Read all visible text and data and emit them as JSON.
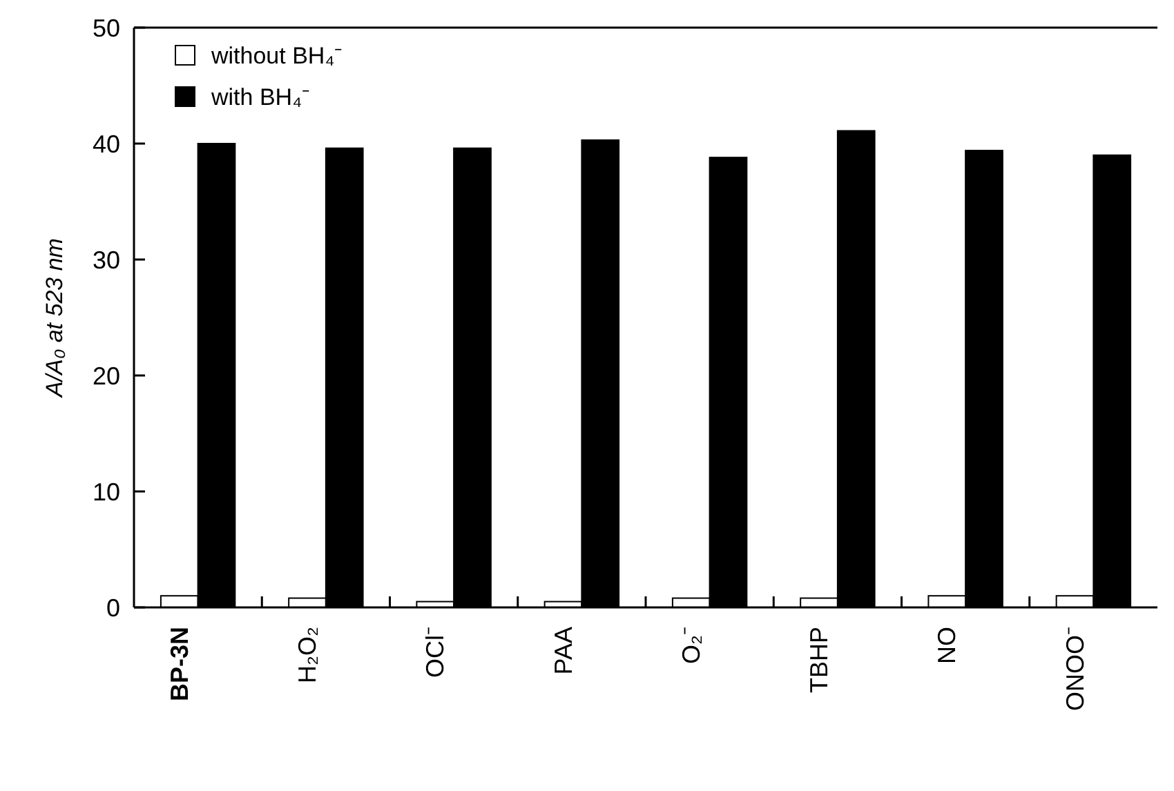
{
  "chart_data": {
    "type": "bar",
    "ylabel": "A/A₀ at 523 nm",
    "categories": [
      "BP-3N",
      "H₂O₂",
      "OCl⁻",
      "PAA",
      "O₂⁻",
      "TBHP",
      "NO",
      "ONOO⁻"
    ],
    "series": [
      {
        "name": "without BH₄⁻",
        "color": "#ffffff",
        "values": [
          1.0,
          0.8,
          0.5,
          0.5,
          0.8,
          0.8,
          1.0,
          1.0
        ]
      },
      {
        "name": "with BH₄⁻",
        "color": "#000000",
        "values": [
          40.0,
          39.6,
          39.6,
          40.3,
          38.8,
          41.1,
          39.4,
          39.0
        ]
      }
    ],
    "ylim": [
      0,
      50
    ],
    "yticks": [
      0,
      10,
      20,
      30,
      40,
      50
    ],
    "grid": false,
    "legend": "top left"
  }
}
